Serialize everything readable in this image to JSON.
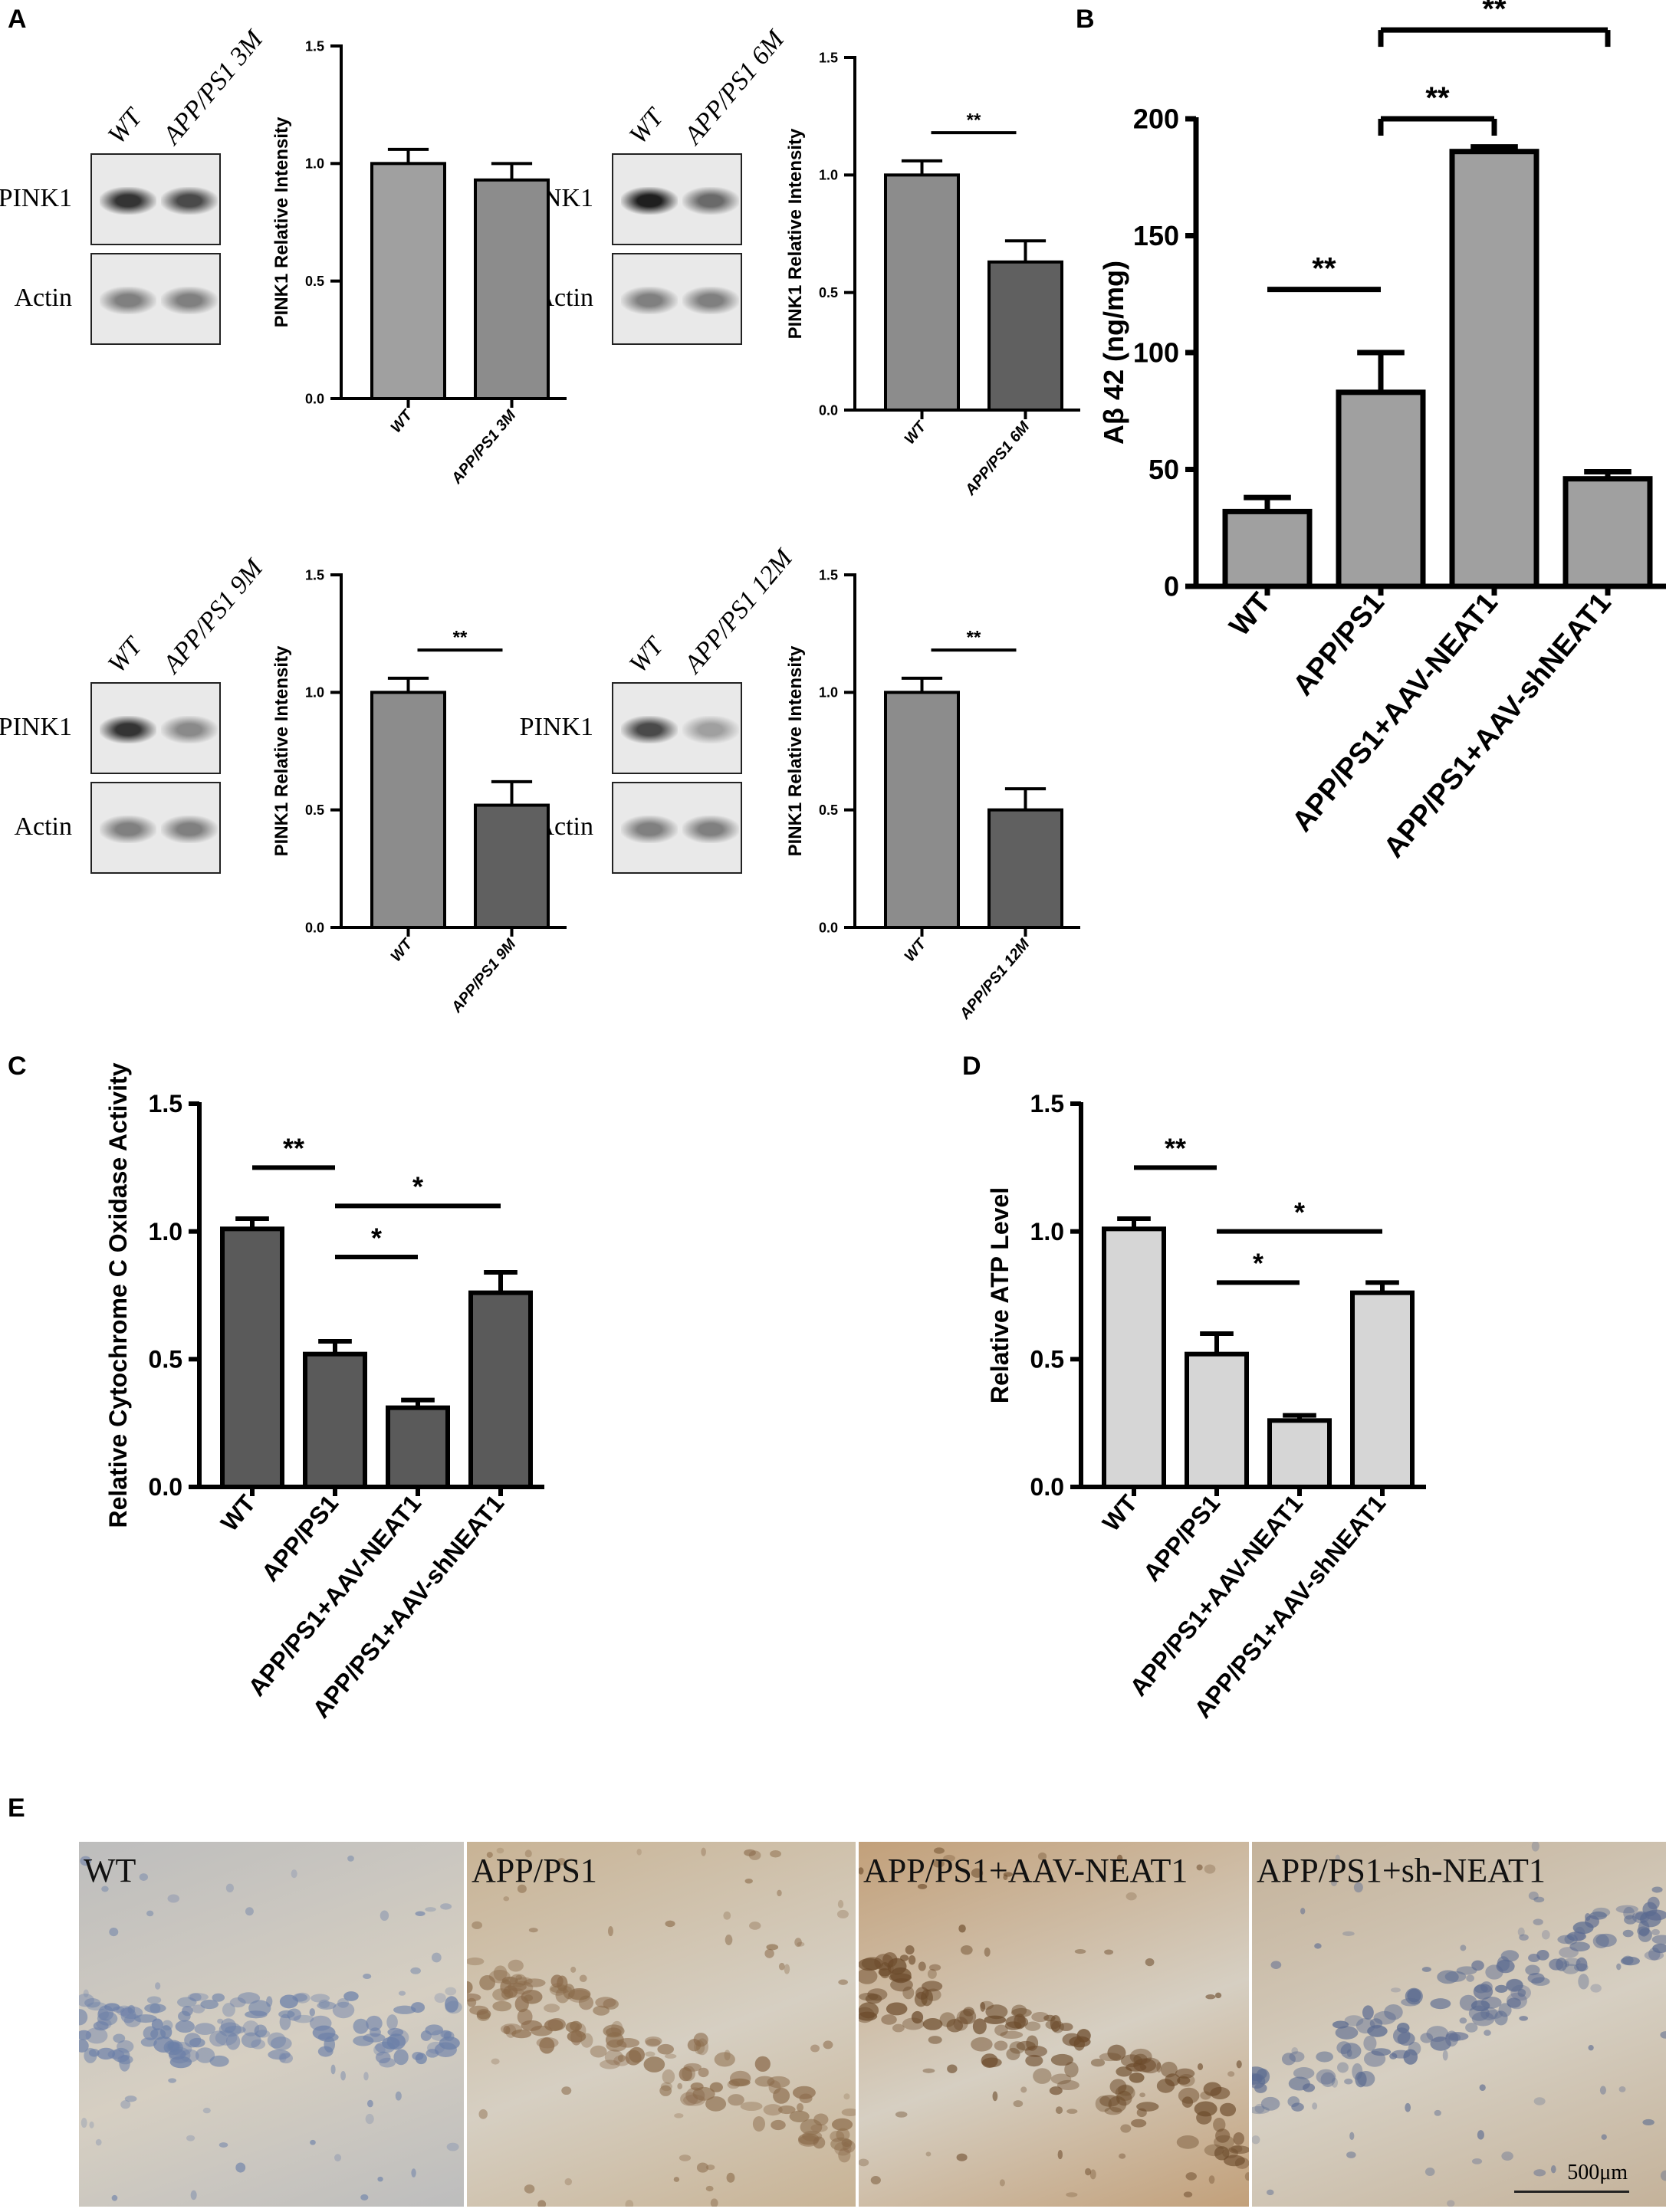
{
  "panels": {
    "A": "A",
    "B": "B",
    "C": "C",
    "D": "D",
    "E": "E"
  },
  "blots": [
    {
      "id": "3m",
      "lane_labels": [
        "WT",
        "APP/PS1 3M"
      ],
      "rows": [
        "PINK1",
        "Actin"
      ],
      "pink1_intensity": [
        0.85,
        0.75
      ]
    },
    {
      "id": "6m",
      "lane_labels": [
        "WT",
        "APP/PS1 6M"
      ],
      "rows": [
        "PINK1",
        "Actin"
      ],
      "pink1_intensity": [
        0.95,
        0.6
      ]
    },
    {
      "id": "9m",
      "lane_labels": [
        "WT",
        "APP/PS1 9M"
      ],
      "rows": [
        "PINK1",
        "Actin"
      ],
      "pink1_intensity": [
        0.85,
        0.45
      ]
    },
    {
      "id": "12m",
      "lane_labels": [
        "WT",
        "APP/PS1 12M"
      ],
      "rows": [
        "PINK1",
        "Actin"
      ],
      "pink1_intensity": [
        0.75,
        0.35
      ]
    }
  ],
  "chart_data": [
    {
      "id": "A1",
      "type": "bar",
      "categories": [
        "WT",
        "APP/PS1 3M"
      ],
      "values": [
        1.0,
        0.93
      ],
      "errors": [
        0.06,
        0.07
      ],
      "ylabel": "PINK1 Relative Intensity",
      "ylim": [
        0,
        1.5
      ],
      "yticks": [
        "0.0",
        "0.5",
        "1.0",
        "1.5"
      ],
      "tick_values": [
        0,
        0.5,
        1.0,
        1.5
      ],
      "bar_colors": [
        "#a0a0a0",
        "#8c8c8c"
      ],
      "significance": []
    },
    {
      "id": "A2",
      "type": "bar",
      "categories": [
        "WT",
        "APP/PS1 6M"
      ],
      "values": [
        1.0,
        0.63
      ],
      "errors": [
        0.06,
        0.09
      ],
      "ylabel": "PINK1 Relative Intensity",
      "ylim": [
        0,
        1.5
      ],
      "yticks": [
        "0.0",
        "0.5",
        "1.0",
        "1.5"
      ],
      "tick_values": [
        0,
        0.5,
        1.0,
        1.5
      ],
      "bar_colors": [
        "#8c8c8c",
        "#606060"
      ],
      "significance": [
        {
          "from": 0,
          "to": 1,
          "y": 1.18,
          "label": "**"
        }
      ]
    },
    {
      "id": "A3",
      "type": "bar",
      "categories": [
        "WT",
        "APP/PS1 9M"
      ],
      "values": [
        1.0,
        0.52
      ],
      "errors": [
        0.06,
        0.1
      ],
      "ylabel": "PINK1 Relative Intensity",
      "ylim": [
        0,
        1.5
      ],
      "yticks": [
        "0.0",
        "0.5",
        "1.0",
        "1.5"
      ],
      "tick_values": [
        0,
        0.5,
        1.0,
        1.5
      ],
      "bar_colors": [
        "#8c8c8c",
        "#606060"
      ],
      "significance": [
        {
          "from": 0,
          "to": 1,
          "y": 1.18,
          "label": "**"
        }
      ]
    },
    {
      "id": "A4",
      "type": "bar",
      "categories": [
        "WT",
        "APP/PS1 12M"
      ],
      "values": [
        1.0,
        0.5
      ],
      "errors": [
        0.06,
        0.09
      ],
      "ylabel": "PINK1 Relative Intensity",
      "ylim": [
        0,
        1.5
      ],
      "yticks": [
        "0.0",
        "0.5",
        "1.0",
        "1.5"
      ],
      "tick_values": [
        0,
        0.5,
        1.0,
        1.5
      ],
      "bar_colors": [
        "#8c8c8c",
        "#606060"
      ],
      "significance": [
        {
          "from": 0,
          "to": 1,
          "y": 1.18,
          "label": "**"
        }
      ]
    },
    {
      "id": "B",
      "type": "bar",
      "categories": [
        "WT",
        "APP/PS1",
        "APP/PS1+AAV-NEAT1",
        "APP/PS1+AAV-shNEAT1"
      ],
      "values": [
        32,
        83,
        186,
        46
      ],
      "errors": [
        6,
        17,
        2,
        3
      ],
      "ylabel": "Aβ 42 (ng/mg)",
      "ylim": [
        0,
        200
      ],
      "yticks": [
        "0",
        "50",
        "100",
        "150",
        "200"
      ],
      "tick_values": [
        0,
        50,
        100,
        150,
        200
      ],
      "bar_colors": [
        "#a0a0a0",
        "#a0a0a0",
        "#a0a0a0",
        "#a0a0a0"
      ],
      "significance": [
        {
          "from": 0,
          "to": 1,
          "y": 127,
          "label": "**"
        },
        {
          "from": 1,
          "to": 2,
          "y": 200,
          "label": "**",
          "bracket": true
        },
        {
          "from": 1,
          "to": 3,
          "y": 238,
          "label": "**",
          "bracket": true
        }
      ]
    },
    {
      "id": "C",
      "type": "bar",
      "categories": [
        "WT",
        "APP/PS1",
        "APP/PS1+AAV-NEAT1",
        "APP/PS1+AAV-shNEAT1"
      ],
      "values": [
        1.01,
        0.52,
        0.31,
        0.76
      ],
      "errors": [
        0.04,
        0.05,
        0.03,
        0.08
      ],
      "ylabel": "Relative Cytochrome C Oxidase Activity",
      "ylim": [
        0,
        1.5
      ],
      "yticks": [
        "0.0",
        "0.5",
        "1.0",
        "1.5"
      ],
      "tick_values": [
        0,
        0.5,
        1.0,
        1.5
      ],
      "bar_colors": [
        "#5a5a5a",
        "#5a5a5a",
        "#5a5a5a",
        "#5a5a5a"
      ],
      "significance": [
        {
          "from": 0,
          "to": 1,
          "y": 1.25,
          "label": "**"
        },
        {
          "from": 1,
          "to": 3,
          "y": 1.1,
          "label": "*"
        },
        {
          "from": 1,
          "to": 2,
          "y": 0.9,
          "label": "*"
        }
      ]
    },
    {
      "id": "D",
      "type": "bar",
      "categories": [
        "WT",
        "APP/PS1",
        "APP/PS1+AAV-NEAT1",
        "APP/PS1+AAV-shNEAT1"
      ],
      "values": [
        1.01,
        0.52,
        0.26,
        0.76
      ],
      "errors": [
        0.04,
        0.08,
        0.02,
        0.04
      ],
      "ylabel": "Relative ATP Level",
      "ylim": [
        0,
        1.5
      ],
      "yticks": [
        "0.0",
        "0.5",
        "1.0",
        "1.5"
      ],
      "tick_values": [
        0,
        0.5,
        1.0,
        1.5
      ],
      "bar_colors": [
        "#d6d6d6",
        "#d6d6d6",
        "#d6d6d6",
        "#d6d6d6"
      ],
      "significance": [
        {
          "from": 0,
          "to": 1,
          "y": 1.25,
          "label": "**"
        },
        {
          "from": 1,
          "to": 3,
          "y": 1.0,
          "label": "*"
        },
        {
          "from": 1,
          "to": 2,
          "y": 0.8,
          "label": "*"
        }
      ]
    }
  ],
  "micrographs": [
    {
      "label": "WT",
      "tone": "#bdbdbd",
      "stain": "#6b7fa8"
    },
    {
      "label": "APP/PS1",
      "tone": "#c8b395",
      "stain": "#8a6a4a"
    },
    {
      "label": "APP/PS1+AAV-NEAT1",
      "tone": "#c2a07a",
      "stain": "#6b4a2a"
    },
    {
      "label": "APP/PS1+sh-NEAT1",
      "tone": "#c4b29a",
      "stain": "#5a6a90"
    }
  ],
  "scale_bar": "500μm"
}
